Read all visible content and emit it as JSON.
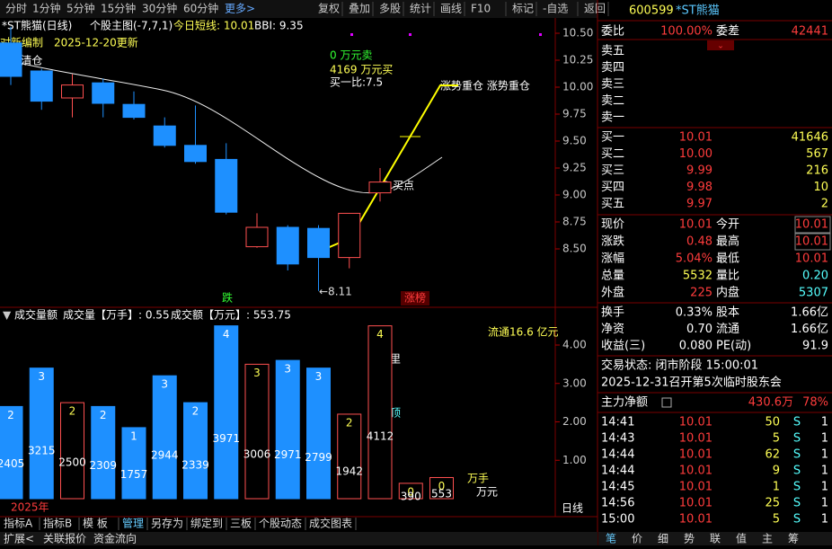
{
  "toolbar": {
    "periods": [
      "分时",
      "1分钟",
      "5分钟",
      "15分钟",
      "30分钟",
      "60分钟",
      "更多>"
    ],
    "tools": [
      "复权",
      "叠加",
      "多股",
      "统计",
      "画线",
      "F10",
      "标记",
      "-自选",
      "返回"
    ]
  },
  "main_chart": {
    "stock": "*ST熊猫(日线)",
    "indicator": "个股主图(-7,7,1)",
    "short_term": "今日短线: 10.01",
    "bbi": "BBI: 9.35",
    "note_1": "对新编制",
    "note_2": "2025-12-20更新",
    "signal_sell": "S 清仓",
    "sell_amount": "0 万元卖",
    "buy_amount": "4169 万元买",
    "bid_ratio": "买一比:7.5",
    "trend": "涨势重仓 涨势重仓",
    "buy_point": "B 买点",
    "low_label": "←8.11",
    "fall": "跌",
    "rise_rank": "涨榜",
    "yticks": [
      {
        "value": 10.5,
        "label": "10.50"
      },
      {
        "value": 10.25,
        "label": "10.25"
      },
      {
        "value": 10,
        "label": "10.00"
      },
      {
        "value": 9.75,
        "label": "9.75"
      },
      {
        "value": 9.5,
        "label": "9.50"
      },
      {
        "value": 9.25,
        "label": "9.25"
      },
      {
        "value": 9,
        "label": "9.00"
      },
      {
        "value": 8.75,
        "label": "8.75"
      },
      {
        "value": 8.5,
        "label": "8.50"
      }
    ],
    "candles": [
      {
        "o": 10.41,
        "h": 10.56,
        "l": 10.02,
        "c": 10.1
      },
      {
        "o": 10.15,
        "h": 10.17,
        "l": 9.79,
        "c": 9.87
      },
      {
        "o": 9.9,
        "h": 10.12,
        "l": 9.72,
        "c": 10.02
      },
      {
        "o": 10.04,
        "h": 10.08,
        "l": 9.72,
        "c": 9.85
      },
      {
        "o": 9.84,
        "h": 9.96,
        "l": 9.7,
        "c": 9.72
      },
      {
        "o": 9.64,
        "h": 9.72,
        "l": 9.44,
        "c": 9.46
      },
      {
        "o": 9.46,
        "h": 9.83,
        "l": 9.29,
        "c": 9.31
      },
      {
        "o": 9.33,
        "h": 9.48,
        "l": 8.82,
        "c": 8.84
      },
      {
        "o": 8.52,
        "h": 8.83,
        "l": 8.51,
        "c": 8.7
      },
      {
        "o": 8.7,
        "h": 8.72,
        "l": 8.3,
        "c": 8.36
      },
      {
        "o": 8.69,
        "h": 8.72,
        "l": 8.11,
        "c": 8.42
      },
      {
        "o": 8.42,
        "h": 8.83,
        "l": 8.32,
        "c": 8.83
      },
      {
        "o": 9.02,
        "h": 9.25,
        "l": 8.94,
        "c": 9.12
      }
    ]
  },
  "volume_panel": {
    "title": "成交量额",
    "volume": "成交量【万手】: 0.55",
    "amount": "成交额【万元】: 553.75",
    "float": "流通16.6 亿元",
    "peak_1": "放里",
    "peak_2": "量顶",
    "unit_1": "万手",
    "unit_2": "万元",
    "year": "2025年",
    "period": "日线",
    "yticks": [
      {
        "value": 4,
        "label": "4.00"
      },
      {
        "value": 3,
        "label": "3.00"
      },
      {
        "value": 2,
        "label": "2.00"
      },
      {
        "value": 1,
        "label": "1.00"
      }
    ],
    "bars": [
      {
        "value": 2.4,
        "top": 2,
        "bottom": 2405,
        "up": false
      },
      {
        "value": 3.4,
        "top": 3,
        "bottom": 3215,
        "up": false
      },
      {
        "value": 2.5,
        "top": 2,
        "bottom": 2500,
        "up": true
      },
      {
        "value": 2.4,
        "top": 2,
        "bottom": 2309,
        "up": false
      },
      {
        "value": 1.85,
        "top": 1,
        "bottom": 1757,
        "up": false
      },
      {
        "value": 3.2,
        "top": 3,
        "bottom": 2944,
        "up": false
      },
      {
        "value": 2.5,
        "top": 2,
        "bottom": 2339,
        "up": false
      },
      {
        "value": 4.5,
        "top": 4,
        "bottom": 3971,
        "up": false
      },
      {
        "value": 3.5,
        "top": 3,
        "bottom": 3006,
        "up": true
      },
      {
        "value": 3.6,
        "top": 3,
        "bottom": 2971,
        "up": false
      },
      {
        "value": 3.4,
        "top": 3,
        "bottom": 2799,
        "up": false
      },
      {
        "value": 2.2,
        "top": 2,
        "bottom": 1942,
        "up": true
      },
      {
        "value": 4.5,
        "top": 4,
        "bottom": 4112,
        "up": true
      },
      {
        "value": 0.4,
        "top": 0,
        "bottom": 390,
        "up": true
      },
      {
        "value": 0.55,
        "top": 0,
        "bottom": 553,
        "up": true
      }
    ]
  },
  "bottom_tabs": [
    "指标A",
    "指标B",
    "模 板",
    "管理",
    "另存为",
    "绑定到",
    "三板",
    "个股动态",
    "成交图表"
  ],
  "footer_tabs": [
    "扩展<",
    "关联报价",
    "资金流向"
  ],
  "quote": {
    "code": "600599",
    "name": "*ST熊猫",
    "ratio_label": "委比",
    "ratio": "100.00%",
    "diff_label": "委差",
    "diff": "42441",
    "sells": [
      "卖五",
      "卖四",
      "卖三",
      "卖二",
      "卖一"
    ],
    "buys": [
      [
        "买一",
        "10.01",
        "41646"
      ],
      [
        "买二",
        "10.00",
        "567"
      ],
      [
        "买三",
        "9.99",
        "216"
      ],
      [
        "买四",
        "9.98",
        "10"
      ],
      [
        "买五",
        "9.97",
        "2"
      ]
    ],
    "stats": [
      [
        "现价",
        "10.01",
        "今开",
        "10.01"
      ],
      [
        "涨跌",
        "0.48",
        "最高",
        "10.01"
      ],
      [
        "涨幅",
        "5.04%",
        "最低",
        "10.01"
      ],
      [
        "总量",
        "5532",
        "量比",
        "0.20"
      ],
      [
        "外盘",
        "225",
        "内盘",
        "5307"
      ]
    ],
    "finance": [
      [
        "换手",
        "0.33%",
        "股本",
        "1.66亿"
      ],
      [
        "净资",
        "0.70",
        "流通",
        "1.66亿"
      ],
      [
        "收益(三)",
        "0.080",
        "PE(动)",
        "91.9"
      ]
    ],
    "status": "交易状态: 闭市阶段 15:00:01",
    "notice": "2025-12-31召开第5次临时股东会",
    "flow_label": "主力净额",
    "flow": "430.6万",
    "flow_pct": "78%",
    "trades": [
      [
        "14:41",
        "10.01",
        "50",
        "S",
        "1"
      ],
      [
        "14:43",
        "10.01",
        "5",
        "S",
        "1"
      ],
      [
        "14:44",
        "10.01",
        "62",
        "S",
        "1"
      ],
      [
        "14:44",
        "10.01",
        "9",
        "S",
        "1"
      ],
      [
        "14:45",
        "10.01",
        "1",
        "S",
        "1"
      ],
      [
        "14:56",
        "10.01",
        "25",
        "S",
        "1"
      ],
      [
        "15:00",
        "10.01",
        "5",
        "S",
        "1"
      ]
    ],
    "tabs": [
      "笔",
      "价",
      "细",
      "势",
      "联",
      "值",
      "主",
      "筹"
    ]
  }
}
